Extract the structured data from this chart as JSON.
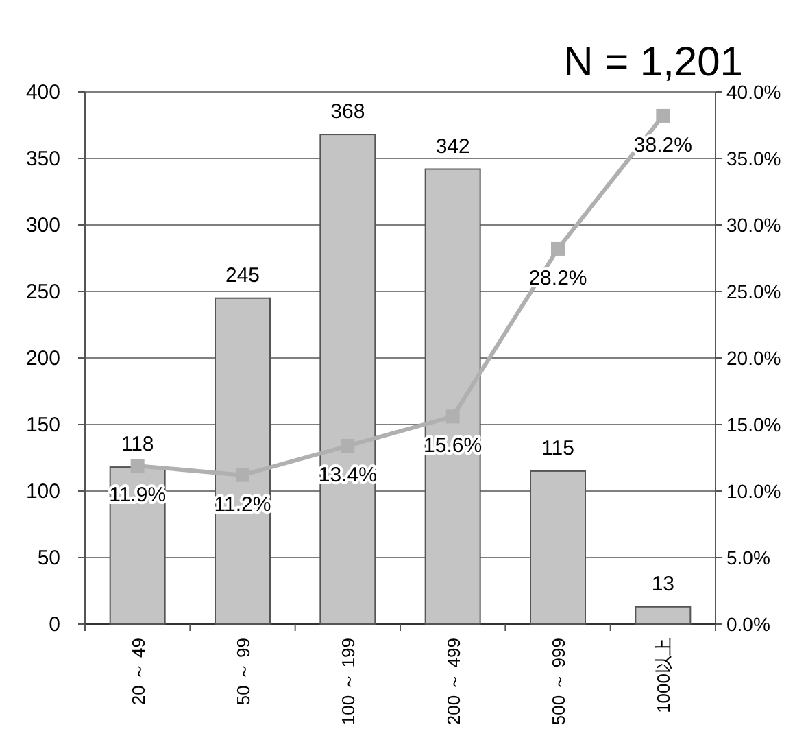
{
  "chart_data": {
    "type": "bar",
    "categories": [
      "20 ～ 49",
      "50 ～ 99",
      "100 ～ 199",
      "200 ～ 499",
      "500 ～ 999",
      "1000以上"
    ],
    "series": [
      {
        "color": "#c4c4c4",
        "values": [
          118,
          245,
          368,
          342,
          115,
          13
        ],
        "value_labels": [
          "118",
          "245",
          "368",
          "342",
          "115",
          "13"
        ]
      },
      {
        "type": "line",
        "axis": "y2",
        "color": "#b0b0b0",
        "marker": "square",
        "values": [
          11.9,
          11.2,
          13.4,
          15.6,
          28.2,
          38.2
        ],
        "value_labels": [
          "11.9%",
          "11.2%",
          "13.4%",
          "15.6%",
          "28.2%",
          "38.2%"
        ]
      }
    ],
    "ylim": [
      0,
      400
    ],
    "yticks": [
      0,
      50,
      100,
      150,
      200,
      250,
      300,
      350,
      400
    ],
    "y2lim": [
      0,
      40
    ],
    "y2ticks": [
      {
        "value": 0,
        "label": "0.0%"
      },
      {
        "value": 5,
        "label": "5.0%"
      },
      {
        "value": 10,
        "label": "10.0%"
      },
      {
        "value": 15,
        "label": "15.0%"
      },
      {
        "value": 20,
        "label": "20.0%"
      },
      {
        "value": 25,
        "label": "25.0%"
      },
      {
        "value": 30,
        "label": "30.0%"
      },
      {
        "value": 35,
        "label": "35.0%"
      },
      {
        "value": 40,
        "label": "40.0%"
      }
    ],
    "grid": "y",
    "annotations": [
      "N = 1,201"
    ]
  }
}
